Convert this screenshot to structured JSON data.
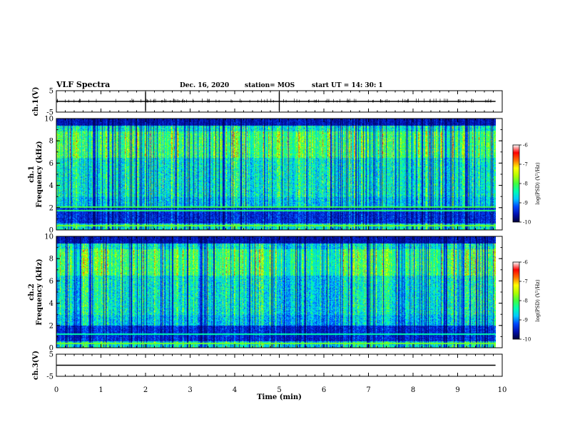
{
  "header": {
    "title": "VLF  Spectra",
    "date": "Dec. 16, 2020",
    "station": "station= MOS",
    "start": "start  UT  =   14: 30: 1"
  },
  "chart_data": [
    {
      "type": "line",
      "panel": "ch1-waveform",
      "ylabel": "ch.1(V)",
      "ylim": [
        -5,
        5
      ],
      "y_ticks": [
        "5",
        "-5"
      ],
      "series": [
        {
          "x": [
            0,
            9.85
          ],
          "y": [
            0,
            0
          ]
        }
      ]
    },
    {
      "type": "heatmap",
      "panel": "ch1-spectrogram",
      "ylabel_lines": [
        "ch.1",
        "Frequency  (kHz)"
      ],
      "ylim": [
        0,
        10
      ],
      "y_ticks": [
        "0",
        "2",
        "4",
        "6",
        "8",
        "10"
      ],
      "xlim": [
        0,
        10
      ],
      "colorbar": {
        "label": "log(PSD) (V²/Hz)",
        "range": [
          -10,
          -6
        ],
        "ticks": [
          "-6",
          "-7",
          "-8",
          "-9",
          "-10"
        ]
      }
    },
    {
      "type": "heatmap",
      "panel": "ch2-spectrogram",
      "ylabel_lines": [
        "ch.2",
        "Frequency  (kHz)"
      ],
      "ylim": [
        0,
        10
      ],
      "y_ticks": [
        "0",
        "2",
        "4",
        "6",
        "8",
        "10"
      ],
      "xlim": [
        0,
        10
      ],
      "colorbar": {
        "label": "log(PSD) (V²/Hz)",
        "range": [
          -10,
          -6
        ],
        "ticks": [
          "-6",
          "-7",
          "-8",
          "-9",
          "-10"
        ]
      }
    },
    {
      "type": "line",
      "panel": "ch3-waveform",
      "ylabel": "ch.3(V)",
      "ylim": [
        -5,
        5
      ],
      "y_ticks": [
        "5",
        "-5"
      ],
      "series": [
        {
          "x": [
            0,
            9.85
          ],
          "y": [
            0,
            0
          ]
        }
      ]
    }
  ],
  "x_axis": {
    "label": "Time  (min)",
    "range": [
      0,
      10
    ],
    "ticks": [
      "0",
      "1",
      "2",
      "3",
      "4",
      "5",
      "6",
      "7",
      "8",
      "9",
      "10"
    ]
  },
  "colors": {
    "scale": [
      "#00003a",
      "#0010b0",
      "#0048ff",
      "#00c8ff",
      "#00ffb0",
      "#40ff40",
      "#b0ff00",
      "#ffff00",
      "#ff7000",
      "#ff0000",
      "#ffffff"
    ]
  }
}
